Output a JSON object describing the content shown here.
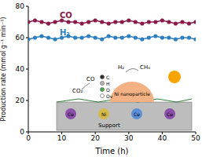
{
  "chart_data": {
    "type": "line",
    "x_label": "Time (h)",
    "y_label": "Production rate (mmol g⁻¹ min⁻¹)",
    "x": [
      0,
      2,
      4,
      6,
      8,
      10,
      12,
      14,
      16,
      18,
      20,
      22,
      24,
      26,
      28,
      30,
      32,
      34,
      36,
      38,
      40,
      42,
      44,
      46,
      48,
      50
    ],
    "series": [
      {
        "name": "CO",
        "color": "#8b1a4a",
        "marker": "circle",
        "values": [
          70,
          71,
          70,
          69,
          70,
          71,
          70,
          70,
          69,
          70,
          71,
          70,
          69,
          70,
          70,
          71,
          70,
          69,
          70,
          70,
          71,
          70,
          69,
          70,
          69,
          70
        ]
      },
      {
        "name": "H₂",
        "color": "#2e7fc0",
        "marker": "circle",
        "values": [
          59,
          60,
          61,
          60,
          59,
          60,
          61,
          60,
          60,
          61,
          60,
          59,
          61,
          60,
          60,
          61,
          60,
          59,
          60,
          61,
          60,
          60,
          59,
          60,
          60,
          59
        ]
      }
    ],
    "xlim": [
      0,
      50
    ],
    "xticks": [
      0,
      10,
      20,
      30,
      40,
      50
    ],
    "ylim": [
      0,
      80
    ],
    "yticks": [
      0,
      20,
      40,
      60,
      80
    ],
    "grid": false
  },
  "inset": {
    "atoms": [
      "C",
      "H",
      "O",
      "Ov"
    ],
    "particle": "Ni nanoparticle",
    "support": "Support",
    "support_atoms": [
      "Ce",
      "Ni",
      "Ce",
      "Ce"
    ],
    "molecules": [
      "CO₂",
      "CO",
      "H₂",
      "CH₄"
    ]
  }
}
